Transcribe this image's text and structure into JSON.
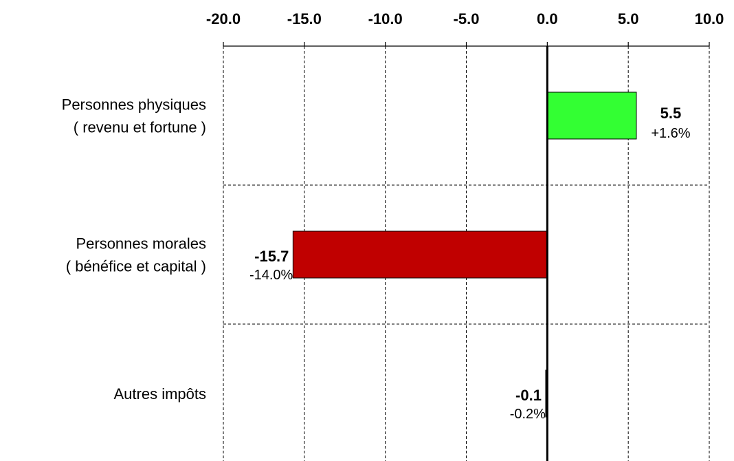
{
  "chart_data": {
    "type": "bar",
    "orientation": "horizontal",
    "xlim": [
      -20.0,
      10.0
    ],
    "x_ticks": [
      -20.0,
      -15.0,
      -10.0,
      -5.0,
      0.0,
      5.0,
      10.0
    ],
    "x_tick_labels": [
      "-20.0",
      "-15.0",
      "-10.0",
      "-5.0",
      "0.0",
      "5.0",
      "10.0"
    ],
    "x_axis_position": "top",
    "grid": true,
    "categories": [
      {
        "lines": [
          "Personnes physiques",
          "( revenu et fortune )"
        ]
      },
      {
        "lines": [
          "Personnes morales",
          "( bénéfice et capital )"
        ]
      },
      {
        "lines": [
          "Autres impôts"
        ]
      }
    ],
    "values": [
      5.5,
      -15.7,
      -0.1
    ],
    "value_labels": [
      "5.5",
      "-15.7",
      "-0.1"
    ],
    "percent_labels": [
      "+1.6%",
      "-14.0%",
      "-0.2%"
    ],
    "colors": [
      "#33ff33",
      "#c00000",
      "#1a1a1a"
    ]
  }
}
